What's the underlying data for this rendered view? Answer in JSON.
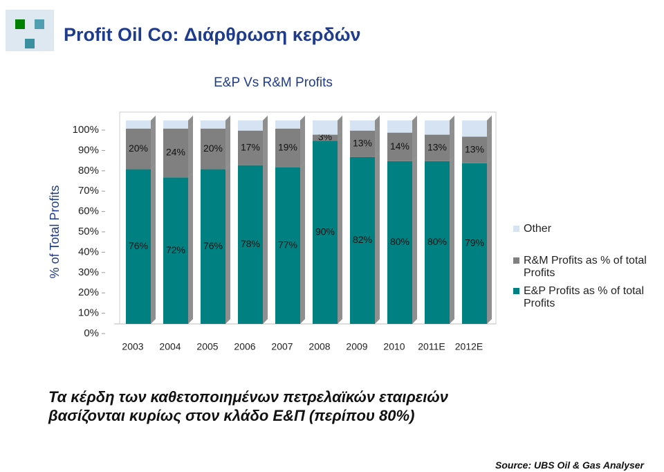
{
  "header": {
    "title": "Profit Oil Co: Διάρθρωση κερδών"
  },
  "chart_data": {
    "type": "stacked-bar",
    "title": "E&P Vs R&M Profits",
    "y_label": "% of Total Profits",
    "categories": [
      "2003",
      "2004",
      "2005",
      "2006",
      "2007",
      "2008",
      "2009",
      "2010",
      "2011E",
      "2012E"
    ],
    "series": [
      {
        "name": "E&P Profits as % of total Profits",
        "color": "#008080",
        "values": [
          76,
          72,
          76,
          78,
          77,
          90,
          82,
          80,
          80,
          79
        ],
        "value_labels": [
          "76%",
          "72%",
          "76%",
          "78%",
          "77%",
          "90%",
          "82%",
          "80%",
          "80%",
          "79%"
        ]
      },
      {
        "name": "R&M Profits as % of total Profits",
        "color": "#808080",
        "values": [
          20,
          24,
          20,
          17,
          19,
          3,
          13,
          14,
          13,
          13
        ],
        "value_labels": [
          "20%",
          "24%",
          "20%",
          "17%",
          "19%",
          "3%",
          "13%",
          "14%",
          "13%",
          "13%"
        ]
      },
      {
        "name": "Other",
        "color": "#d6e3f2",
        "values": [
          4,
          4,
          4,
          5,
          4,
          7,
          5,
          6,
          7,
          8
        ]
      }
    ],
    "ylim": [
      0,
      100
    ],
    "yticks": [
      {
        "value": 0,
        "label": "0%"
      },
      {
        "value": 10,
        "label": "10%"
      },
      {
        "value": 20,
        "label": "20%"
      },
      {
        "value": 30,
        "label": "30%"
      },
      {
        "value": 40,
        "label": "40%"
      },
      {
        "value": 50,
        "label": "50%"
      },
      {
        "value": 60,
        "label": "60%"
      },
      {
        "value": 70,
        "label": "70%"
      },
      {
        "value": 80,
        "label": "80%"
      },
      {
        "value": 90,
        "label": "90%"
      },
      {
        "value": 100,
        "label": "100%"
      }
    ],
    "legend": "right"
  },
  "body_text": [
    "Τα κέρδη των καθετοποιημένων πετρελαϊκών εταιρειών",
    "βασίζονται κυρίως στον κλάδο Ε&Π (περίπου 80%)"
  ],
  "source": "Source: UBS Oil & Gas Analyser"
}
